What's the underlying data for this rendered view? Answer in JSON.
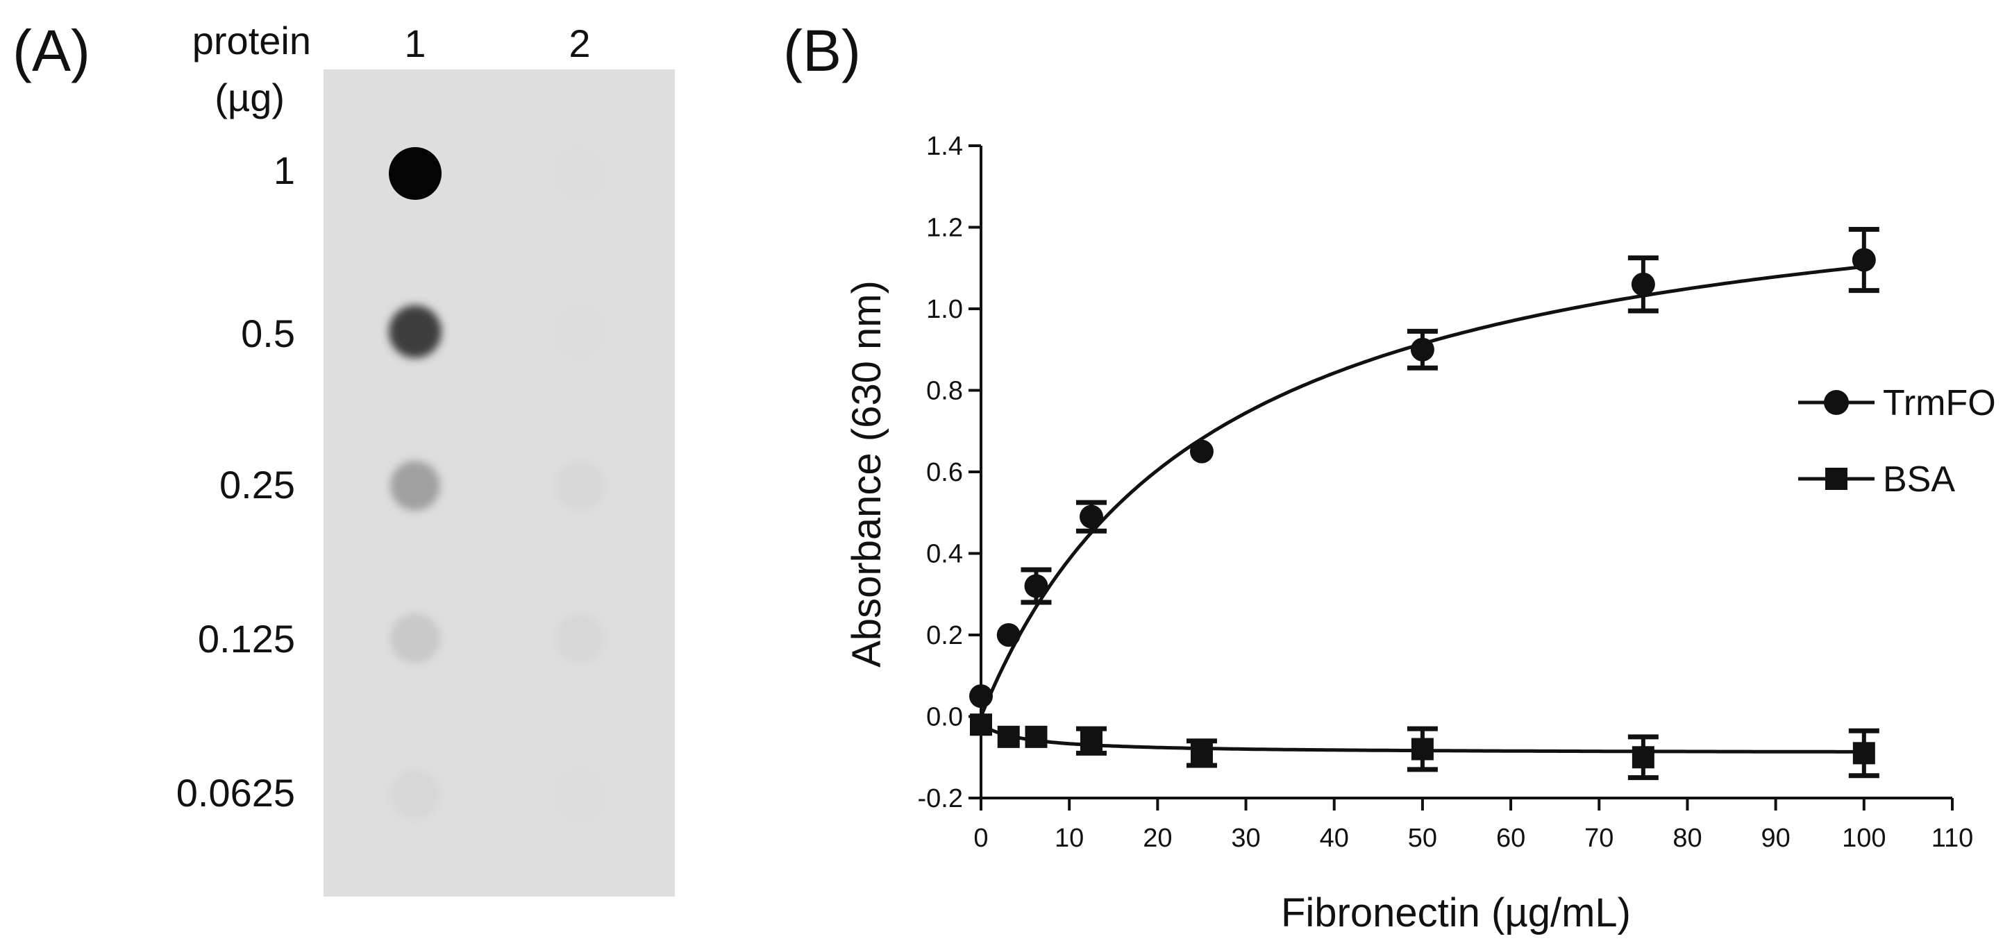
{
  "panel_a": {
    "label": "(A)",
    "header_line1": "protein",
    "header_line2": "(µg)",
    "lanes": [
      "1",
      "2"
    ],
    "amounts": [
      "1",
      "0.5",
      "0.25",
      "0.125",
      "0.0625"
    ],
    "lane1_intensity": [
      0.98,
      0.72,
      0.28,
      0.1,
      0.03
    ],
    "lane2_intensity": [
      0.01,
      0.01,
      0.03,
      0.03,
      0.01
    ]
  },
  "chart_data": {
    "type": "scatter",
    "panel_label": "(B)",
    "xlabel": "Fibronectin (µg/mL)",
    "ylabel": "Absorbance (630 nm)",
    "xlim": [
      0,
      110
    ],
    "ylim": [
      -0.2,
      1.4
    ],
    "xticks": [
      0,
      10,
      20,
      30,
      40,
      50,
      60,
      70,
      80,
      90,
      100,
      110
    ],
    "yticks": [
      -0.2,
      0.0,
      0.2,
      0.4,
      0.6,
      0.8,
      1.0,
      1.2,
      1.4
    ],
    "ytick_labels": [
      "-0.2",
      "0.0",
      "0.2",
      "0.4",
      "0.6",
      "0.8",
      "1.0",
      "1.2",
      "1.4"
    ],
    "legend_position": "right",
    "grid": false,
    "series": [
      {
        "name": "TrmFO",
        "marker": "circle",
        "x": [
          0,
          3.125,
          6.25,
          12.5,
          25,
          50,
          75,
          100
        ],
        "y": [
          0.05,
          0.2,
          0.32,
          0.49,
          0.65,
          0.9,
          1.06,
          1.12
        ],
        "err": [
          0,
          0,
          0.04,
          0.035,
          0,
          0.045,
          0.065,
          0.075
        ],
        "fit": {
          "model": "hyperbolic",
          "bmax": 1.39,
          "kd": 26.0,
          "c": 0.0
        }
      },
      {
        "name": "BSA",
        "marker": "square",
        "x": [
          0,
          3.125,
          6.25,
          12.5,
          25,
          50,
          75,
          100
        ],
        "y": [
          -0.02,
          -0.05,
          -0.05,
          -0.06,
          -0.09,
          -0.08,
          -0.1,
          -0.09
        ],
        "err": [
          0,
          0,
          0,
          0.03,
          0.03,
          0.05,
          0.05,
          0.055
        ],
        "fit": {
          "model": "hyperbolic",
          "bmax": -0.07,
          "kd": 5.0,
          "c": -0.02
        }
      }
    ]
  }
}
